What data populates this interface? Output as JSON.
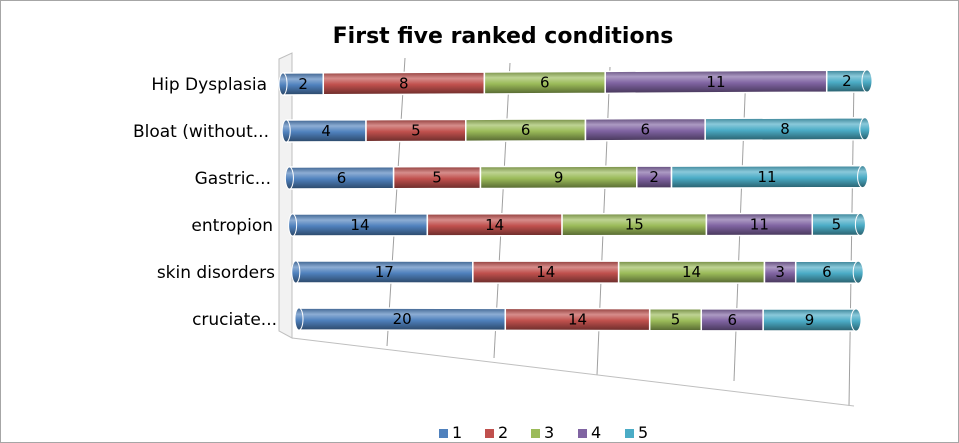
{
  "chart_data": {
    "type": "bar",
    "orientation": "horizontal",
    "stacked": true,
    "style": "3d-cylinder",
    "title": "First five ranked conditions",
    "xlabel": "",
    "ylabel": "",
    "categories": [
      "Hip Dysplasia",
      "Bloat (without...",
      "Gastric...",
      "entropion",
      "skin disorders",
      "cruciate..."
    ],
    "series": [
      {
        "name": "1",
        "color": "#4F81BD",
        "values": [
          2,
          4,
          6,
          14,
          17,
          20
        ]
      },
      {
        "name": "2",
        "color": "#C0504D",
        "values": [
          8,
          5,
          5,
          14,
          14,
          14
        ]
      },
      {
        "name": "3",
        "color": "#9BBB59",
        "values": [
          6,
          6,
          9,
          15,
          14,
          5
        ]
      },
      {
        "name": "4",
        "color": "#8064A2",
        "values": [
          11,
          6,
          2,
          11,
          3,
          6
        ]
      },
      {
        "name": "5",
        "color": "#4BACC6",
        "values": [
          2,
          8,
          11,
          5,
          6,
          9
        ]
      }
    ],
    "legend_position": "bottom",
    "grid": true
  }
}
